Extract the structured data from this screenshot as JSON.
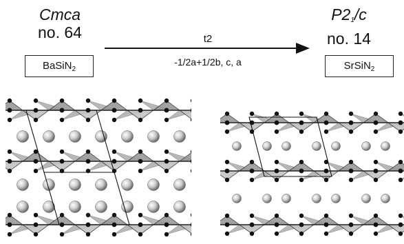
{
  "left_phase": {
    "symbol": "Cmca",
    "number": "no. 64",
    "formula_base": "BaSiN",
    "formula_sub": "2"
  },
  "right_phase": {
    "symbol_base": "P2",
    "symbol_sub": "1",
    "symbol_tail": "/c",
    "number": "no. 14",
    "formula_base": "SrSiN",
    "formula_sub": "2"
  },
  "transformation": {
    "type": "t2",
    "basis": "-1/2a+1/2b, c, a"
  }
}
